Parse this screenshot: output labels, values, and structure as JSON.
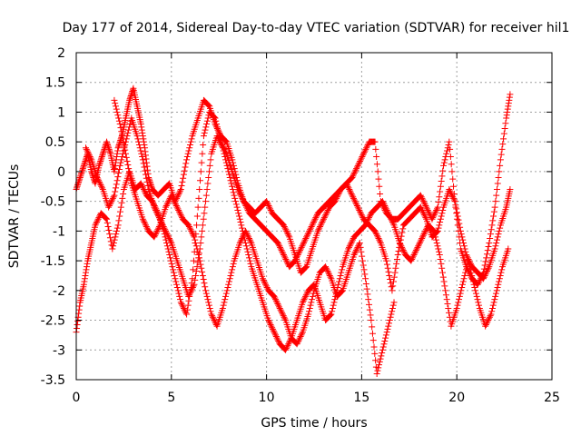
{
  "chart_data": {
    "type": "scatter",
    "title": "Day 177 of 2014, Sidereal Day-to-day VTEC variation (SDTVAR) for receiver hil1",
    "xlabel": "GPS time / hours",
    "ylabel": "SDTVAR / TECUs",
    "xlim": [
      0,
      25
    ],
    "ylim": [
      -3.5,
      2
    ],
    "x_ticks": [
      0,
      5,
      10,
      15,
      20,
      25
    ],
    "y_ticks": [
      -3.5,
      -3,
      -2.5,
      -2,
      -1.5,
      -1,
      -0.5,
      0,
      0.5,
      1,
      1.5,
      2
    ],
    "grid": true,
    "marker": "plus",
    "color": "#ff0000",
    "series": [
      {
        "x": [
          0.0,
          0.2,
          0.4,
          0.6,
          0.8,
          1.0,
          1.2,
          1.4,
          1.6,
          1.8,
          2.0,
          2.2,
          2.4,
          2.6,
          2.8,
          3.0,
          3.2,
          3.4,
          3.6,
          3.8,
          4.0,
          4.3,
          4.6,
          4.9,
          5.2,
          5.5,
          5.8,
          6.1,
          6.4,
          6.7,
          7.0,
          7.3,
          7.6,
          7.9,
          8.2,
          8.5,
          8.8,
          9.1,
          9.4,
          9.7,
          10.0,
          10.3,
          10.6,
          10.9,
          11.2,
          11.5,
          11.8,
          12.1,
          12.4,
          12.7,
          13.0,
          13.3,
          13.6,
          13.9,
          14.2,
          14.5,
          14.8,
          15.1,
          15.4,
          15.7,
          16.0,
          16.3,
          16.6,
          16.9,
          17.2,
          17.5,
          17.8,
          18.1,
          18.4,
          18.7,
          19.0,
          19.3,
          19.6,
          19.9,
          20.2,
          20.5,
          20.8,
          21.1,
          21.4,
          21.7,
          22.0,
          22.3,
          22.6,
          22.8
        ],
        "y": [
          -0.3,
          -0.1,
          0.1,
          0.3,
          0.0,
          -0.2,
          0.1,
          0.3,
          0.5,
          0.3,
          0.0,
          0.4,
          0.6,
          0.9,
          1.2,
          1.4,
          1.1,
          0.8,
          0.4,
          -0.1,
          -0.3,
          -0.4,
          -0.3,
          -0.2,
          -0.5,
          -0.3,
          0.2,
          0.6,
          0.9,
          1.2,
          1.1,
          0.8,
          0.6,
          0.5,
          0.2,
          -0.2,
          -0.5,
          -0.7,
          -0.8,
          -0.9,
          -1.0,
          -1.1,
          -1.2,
          -1.4,
          -1.6,
          -1.5,
          -1.3,
          -1.1,
          -0.9,
          -0.7,
          -0.6,
          -0.5,
          -0.4,
          -0.3,
          -0.2,
          -0.1,
          0.1,
          0.3,
          0.5,
          0.5,
          -0.5,
          -0.7,
          -0.8,
          -0.8,
          -0.7,
          -0.6,
          -0.5,
          -0.4,
          -0.6,
          -0.8,
          -0.6,
          0.1,
          0.5,
          -0.5,
          -1.3,
          -1.6,
          -1.8,
          -1.9,
          -1.7,
          -1.2,
          -0.6,
          0.2,
          0.9,
          1.3
        ]
      },
      {
        "x": [
          0.0,
          0.2,
          0.4,
          0.6,
          0.8,
          1.0,
          1.3,
          1.6,
          1.9,
          2.2,
          2.5,
          2.8,
          3.1,
          3.4,
          3.7,
          4.0,
          4.3,
          4.6,
          4.9,
          5.2,
          5.5,
          5.8,
          6.1,
          6.4,
          6.7,
          7.0,
          7.3,
          7.6,
          7.9,
          8.2,
          8.5,
          8.8,
          9.1,
          9.4,
          9.7,
          10.0,
          10.3,
          10.6,
          10.9,
          11.2,
          11.5,
          11.8,
          12.1,
          12.4,
          12.7,
          13.0,
          13.3,
          13.6,
          13.9,
          14.2,
          14.5,
          14.8,
          15.1,
          15.4,
          15.7,
          16.0,
          16.3,
          16.6,
          16.9,
          17.2,
          17.5,
          17.8,
          18.1,
          18.4,
          18.7,
          19.0,
          19.3,
          19.6,
          19.9,
          20.2,
          20.5,
          20.8,
          21.1,
          21.4,
          21.7,
          22.0,
          22.3,
          22.6,
          22.8
        ],
        "y": [
          -2.7,
          -2.2,
          -1.9,
          -1.5,
          -1.2,
          -0.9,
          -0.7,
          -0.8,
          -1.3,
          -0.9,
          -0.3,
          0.0,
          -0.3,
          -0.2,
          -0.4,
          -0.5,
          -0.7,
          -1.0,
          -1.4,
          -1.8,
          -2.2,
          -2.4,
          -1.8,
          -0.6,
          0.6,
          1.0,
          0.9,
          0.5,
          0.3,
          0.0,
          -0.3,
          -0.5,
          -0.6,
          -0.7,
          -0.6,
          -0.5,
          -0.7,
          -0.8,
          -0.9,
          -1.1,
          -1.4,
          -1.7,
          -1.6,
          -1.3,
          -1.0,
          -0.8,
          -0.6,
          -0.5,
          -0.3,
          -0.2,
          -0.4,
          -0.6,
          -0.8,
          -0.9,
          -1.0,
          -1.2,
          -1.5,
          -2.0,
          -1.4,
          -0.9,
          -0.8,
          -0.7,
          -0.6,
          -0.8,
          -1.1,
          -1.0,
          -0.6,
          -0.3,
          -0.5,
          -1.0,
          -1.4,
          -1.6,
          -1.7,
          -1.8,
          -1.6,
          -1.3,
          -0.9,
          -0.6,
          -0.3
        ]
      },
      {
        "x": [
          0.5,
          0.8,
          1.1,
          1.4,
          1.7,
          2.0,
          2.3,
          2.6,
          2.9,
          3.2,
          3.5,
          3.8,
          4.1,
          4.4,
          4.7,
          5.0,
          5.3,
          5.6,
          5.9,
          6.2,
          6.5,
          6.8,
          7.1,
          7.4,
          7.7,
          8.0,
          8.3,
          8.6,
          8.9,
          9.2,
          9.5,
          9.8,
          10.1,
          10.4,
          10.7,
          11.0,
          11.3,
          11.6,
          11.9,
          12.2,
          12.5,
          12.8,
          13.1,
          13.4,
          13.7,
          14.0,
          14.3,
          14.6,
          14.9,
          15.2,
          15.5,
          15.8,
          16.1,
          16.4,
          16.7,
          17.0,
          17.3,
          17.6,
          17.9,
          18.2,
          18.5,
          18.8,
          19.1,
          19.4,
          19.7,
          20.0,
          20.3,
          20.6,
          20.9,
          21.2,
          21.5,
          21.8,
          22.1,
          22.4,
          22.7
        ],
        "y": [
          0.4,
          0.2,
          -0.1,
          -0.3,
          -0.6,
          -0.4,
          0.1,
          0.5,
          0.9,
          0.6,
          0.2,
          -0.3,
          -0.6,
          -0.8,
          -1.0,
          -1.2,
          -1.5,
          -1.8,
          -2.1,
          -1.9,
          -1.3,
          -0.5,
          0.3,
          0.6,
          0.4,
          0.0,
          -0.4,
          -0.8,
          -1.2,
          -1.6,
          -1.9,
          -2.2,
          -2.5,
          -2.7,
          -2.9,
          -3.0,
          -2.8,
          -2.5,
          -2.2,
          -2.0,
          -1.9,
          -2.2,
          -2.5,
          -2.4,
          -2.0,
          -1.6,
          -1.3,
          -1.1,
          -1.0,
          -0.9,
          -0.7,
          -0.6,
          -0.5,
          -0.7,
          -0.9,
          -1.2,
          -1.4,
          -1.5,
          -1.3,
          -1.1,
          -0.9,
          -1.0,
          -1.4,
          -2.0,
          -2.6,
          -2.3,
          -1.9,
          -1.5,
          -1.9,
          -2.3,
          -2.6,
          -2.4,
          -2.0,
          -1.6,
          -1.3
        ]
      },
      {
        "x": [
          2.0,
          2.3,
          2.6,
          2.9,
          3.2,
          3.5,
          3.8,
          4.1,
          4.4,
          4.7,
          5.0,
          5.3,
          5.6,
          5.9,
          6.2,
          6.5,
          6.8,
          7.1,
          7.4,
          7.7,
          8.0,
          8.3,
          8.6,
          8.9,
          9.2,
          9.5,
          9.8,
          10.1,
          10.4,
          10.7,
          11.0,
          11.3,
          11.6,
          11.9,
          12.2,
          12.5,
          12.8,
          13.1,
          13.4,
          13.7,
          14.0,
          14.3,
          14.6,
          14.9,
          15.2,
          15.5,
          15.8,
          16.1,
          16.4,
          16.7
        ],
        "y": [
          1.2,
          0.8,
          0.3,
          -0.2,
          -0.5,
          -0.8,
          -1.0,
          -1.1,
          -0.9,
          -0.6,
          -0.4,
          -0.6,
          -0.8,
          -0.9,
          -1.1,
          -1.5,
          -2.0,
          -2.4,
          -2.6,
          -2.3,
          -1.9,
          -1.5,
          -1.2,
          -1.0,
          -1.2,
          -1.5,
          -1.8,
          -2.0,
          -2.1,
          -2.3,
          -2.5,
          -2.8,
          -2.9,
          -2.7,
          -2.4,
          -2.0,
          -1.7,
          -1.6,
          -1.8,
          -2.1,
          -2.0,
          -1.7,
          -1.4,
          -1.2,
          -1.8,
          -2.5,
          -3.4,
          -3.0,
          -2.6,
          -2.2
        ]
      }
    ]
  }
}
